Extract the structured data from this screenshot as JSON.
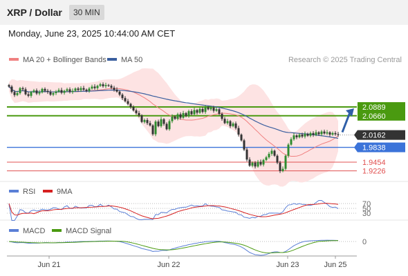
{
  "header": {
    "title": "XRP / Dollar",
    "timeframe": "30 MIN",
    "datetime": "Monday, June 23, 2025 10:44:00 AM CET"
  },
  "colors": {
    "bollinger": "#f08080",
    "ma50": "#3a5f9f",
    "green_level": "#4a9a10",
    "blue_level": "#3b73d9",
    "red_level": "#e05050",
    "rsi": "#5a7fd6",
    "rsi_ma": "#d62020",
    "macd": "#5a7fd6",
    "macd_signal": "#4a9a10",
    "arrow": "#2f5fa8"
  },
  "chart_data": [
    {
      "type": "candlestick",
      "legend": [
        "MA 20 + Bollinger Bands",
        "MA 50"
      ],
      "legend_placement": "top-left",
      "credit": "Research © 2025 Trading Central",
      "x_ticks": [
        "Jun 21",
        "Jun 22",
        "Jun 23",
        "Jun 25"
      ],
      "ylim": [
        1.895,
        2.195
      ],
      "current_price": "2.0162",
      "levels": [
        {
          "label": "2.0889",
          "value": 2.0889,
          "kind": "resistance",
          "color": "green"
        },
        {
          "label": "2.0660",
          "value": 2.066,
          "kind": "resistance",
          "color": "green"
        },
        {
          "label": "1.9838",
          "value": 1.9838,
          "kind": "pivot",
          "color": "blue"
        },
        {
          "label": "1.9454",
          "value": 1.9454,
          "kind": "support",
          "color": "red"
        },
        {
          "label": "1.9226",
          "value": 1.9226,
          "kind": "support",
          "color": "red"
        }
      ],
      "closes": [
        2.142,
        2.128,
        2.12,
        2.125,
        2.138,
        2.135,
        2.122,
        2.118,
        2.128,
        2.132,
        2.124,
        2.127,
        2.136,
        2.131,
        2.128,
        2.121,
        2.125,
        2.129,
        2.133,
        2.126,
        2.131,
        2.135,
        2.128,
        2.131,
        2.137,
        2.133,
        2.138,
        2.134,
        2.131,
        2.137,
        2.142,
        2.138,
        2.144,
        2.148,
        2.143,
        2.146,
        2.144,
        2.139,
        2.134,
        2.129,
        2.121,
        2.112,
        2.104,
        2.097,
        2.089,
        2.08,
        2.073,
        2.067,
        2.05,
        2.055,
        2.047,
        2.041,
        2.018,
        2.051,
        2.039,
        2.057,
        2.045,
        2.031,
        2.052,
        2.064,
        2.058,
        2.07,
        2.061,
        2.073,
        2.066,
        2.078,
        2.07,
        2.081,
        2.074,
        2.084,
        2.076,
        2.088,
        2.083,
        2.087,
        2.079,
        2.083,
        2.071,
        2.058,
        2.047,
        2.052,
        2.039,
        2.046,
        2.034,
        2.017,
        2.002,
        1.978,
        1.952,
        1.936,
        1.944,
        1.934,
        1.946,
        1.939,
        1.951,
        1.958,
        1.967,
        1.975,
        1.962,
        1.944,
        1.922,
        1.928,
        1.962,
        1.991,
        2.005,
        2.015,
        2.01,
        2.017,
        2.012,
        2.019,
        2.014,
        2.021,
        2.016,
        2.023,
        2.018,
        2.025,
        2.02,
        2.023,
        2.017,
        2.021,
        2.018,
        2.016
      ],
      "arrow_target": 2.0889
    },
    {
      "type": "line",
      "legend": [
        "RSI",
        "9MA"
      ],
      "y_ticks": [
        "70",
        "50",
        "30"
      ],
      "ylim": [
        10,
        90
      ]
    },
    {
      "type": "line",
      "legend": [
        "MACD",
        "MACD Signal"
      ],
      "y_ticks": [
        "0"
      ]
    }
  ]
}
